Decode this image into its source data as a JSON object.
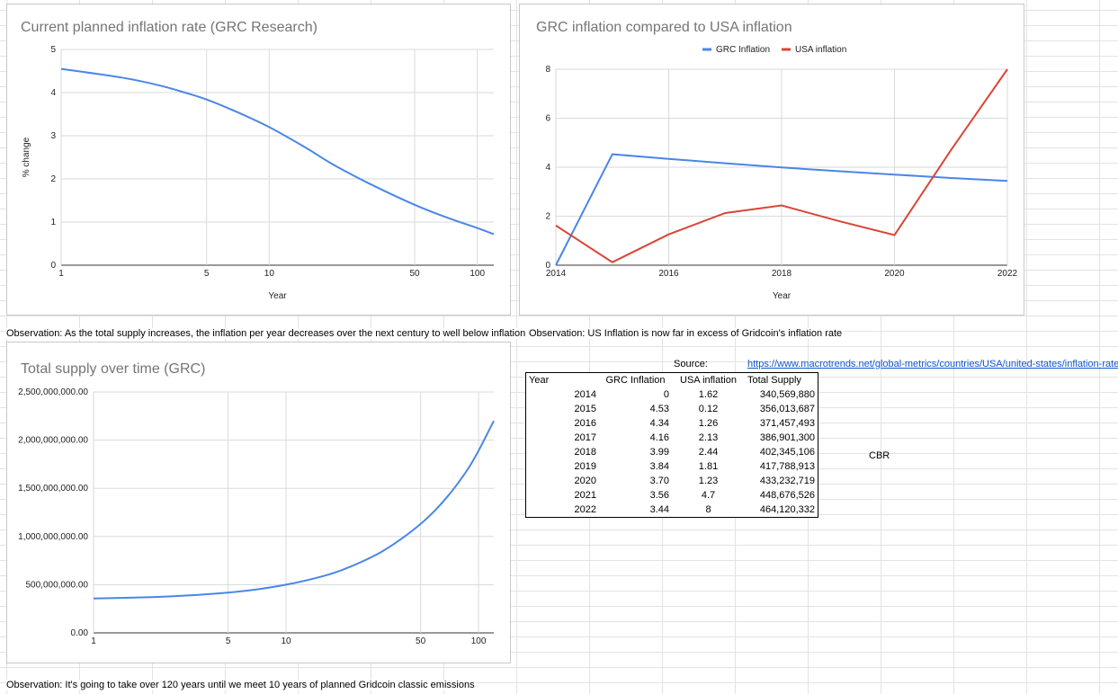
{
  "charts": {
    "planned": {
      "title": "Current planned inflation rate (GRC Research)",
      "observation": "Observation: As the total supply increases, the inflation per year decreases over the next century to well below inflation"
    },
    "compare": {
      "title": "GRC inflation compared to USA inflation",
      "observation": "Observation: US Inflation is now far in excess of Gridcoin's inflation rate"
    },
    "supply": {
      "title": "Total supply over time (GRC)",
      "observation": "Observation: It's going to take over 120 years until we meet 10 years of planned Gridcoin classic emissions"
    }
  },
  "chart_data": [
    {
      "id": "planned",
      "type": "line",
      "title": "Current planned inflation rate (GRC Research)",
      "xlabel": "Year",
      "ylabel": "% change",
      "x_scale": "log",
      "xlim": [
        1,
        120
      ],
      "ylim": [
        0,
        5
      ],
      "x_ticks": [
        1,
        5,
        10,
        50,
        100
      ],
      "y_ticks": [
        0,
        1,
        2,
        3,
        4,
        5
      ],
      "grid": true,
      "color": "#4a86e8",
      "series": [
        {
          "x": [
            1,
            2,
            3,
            4,
            5,
            7,
            10,
            15,
            20,
            30,
            50,
            70,
            100,
            120
          ],
          "y": [
            4.55,
            4.34,
            4.16,
            3.99,
            3.84,
            3.55,
            3.2,
            2.72,
            2.35,
            1.9,
            1.4,
            1.12,
            0.86,
            0.72
          ]
        }
      ]
    },
    {
      "id": "compare",
      "type": "line",
      "title": "GRC inflation compared to USA inflation",
      "xlabel": "Year",
      "ylabel": "",
      "xlim": [
        2014,
        2022
      ],
      "ylim": [
        0,
        8
      ],
      "x_ticks": [
        2014,
        2016,
        2018,
        2020,
        2022
      ],
      "y_ticks": [
        0,
        2,
        4,
        6,
        8
      ],
      "grid": true,
      "legend": "top",
      "x": [
        2014,
        2015,
        2016,
        2017,
        2018,
        2019,
        2020,
        2021,
        2022
      ],
      "series": [
        {
          "name": "GRC Inflation",
          "color": "#4a86e8",
          "values": [
            0,
            4.53,
            4.34,
            4.16,
            3.99,
            3.84,
            3.7,
            3.56,
            3.44
          ]
        },
        {
          "name": "USA inflation",
          "color": "#db4437",
          "values": [
            1.62,
            0.12,
            1.26,
            2.13,
            2.44,
            1.81,
            1.23,
            4.7,
            8
          ]
        }
      ]
    },
    {
      "id": "supply",
      "type": "line",
      "title": "Total supply over time (GRC)",
      "xlabel": "",
      "ylabel": "",
      "x_scale": "log",
      "xlim": [
        1,
        120
      ],
      "ylim": [
        0,
        2500000000
      ],
      "x_ticks": [
        1,
        5,
        10,
        50,
        100
      ],
      "y_ticks": [
        0,
        500000000,
        1000000000,
        1500000000,
        2000000000,
        2500000000
      ],
      "y_tick_labels": [
        "0.00",
        "500,000,000.00",
        "1,000,000,000.00",
        "1,500,000,000.00",
        "2,000,000,000.00",
        "2,500,000,000.00"
      ],
      "grid": true,
      "color": "#4a86e8",
      "series": [
        {
          "x": [
            1,
            2,
            3,
            5,
            7,
            10,
            15,
            20,
            30,
            40,
            50,
            60,
            70,
            80,
            90,
            100,
            110,
            120
          ],
          "y": [
            356000000,
            371000000,
            387000000,
            418000000,
            450000000,
            500000000,
            580000000,
            660000000,
            820000000,
            980000000,
            1130000000,
            1280000000,
            1430000000,
            1580000000,
            1730000000,
            1890000000,
            2050000000,
            2200000000
          ]
        }
      ]
    }
  ],
  "table": {
    "source_label": "Source:",
    "source_url": "https://www.macrotrends.net/global-metrics/countries/USA/united-states/inflation-rate-cpi",
    "headers": [
      "Year",
      "GRC Inflation",
      "USA inflation",
      "Total Supply"
    ],
    "rows": [
      [
        "2014",
        "0",
        "1.62",
        "340,569,880"
      ],
      [
        "2015",
        "4.53",
        "0.12",
        "356,013,687"
      ],
      [
        "2016",
        "4.34",
        "1.26",
        "371,457,493"
      ],
      [
        "2017",
        "4.16",
        "2.13",
        "386,901,300"
      ],
      [
        "2018",
        "3.99",
        "2.44",
        "402,345,106"
      ],
      [
        "2019",
        "3.84",
        "1.81",
        "417,788,913"
      ],
      [
        "2020",
        "3.70",
        "1.23",
        "433,232,719"
      ],
      [
        "2021",
        "3.56",
        "4.7",
        "448,676,526"
      ],
      [
        "2022",
        "3.44",
        "8",
        "464,120,332"
      ]
    ],
    "extra_cell": "CBR"
  }
}
